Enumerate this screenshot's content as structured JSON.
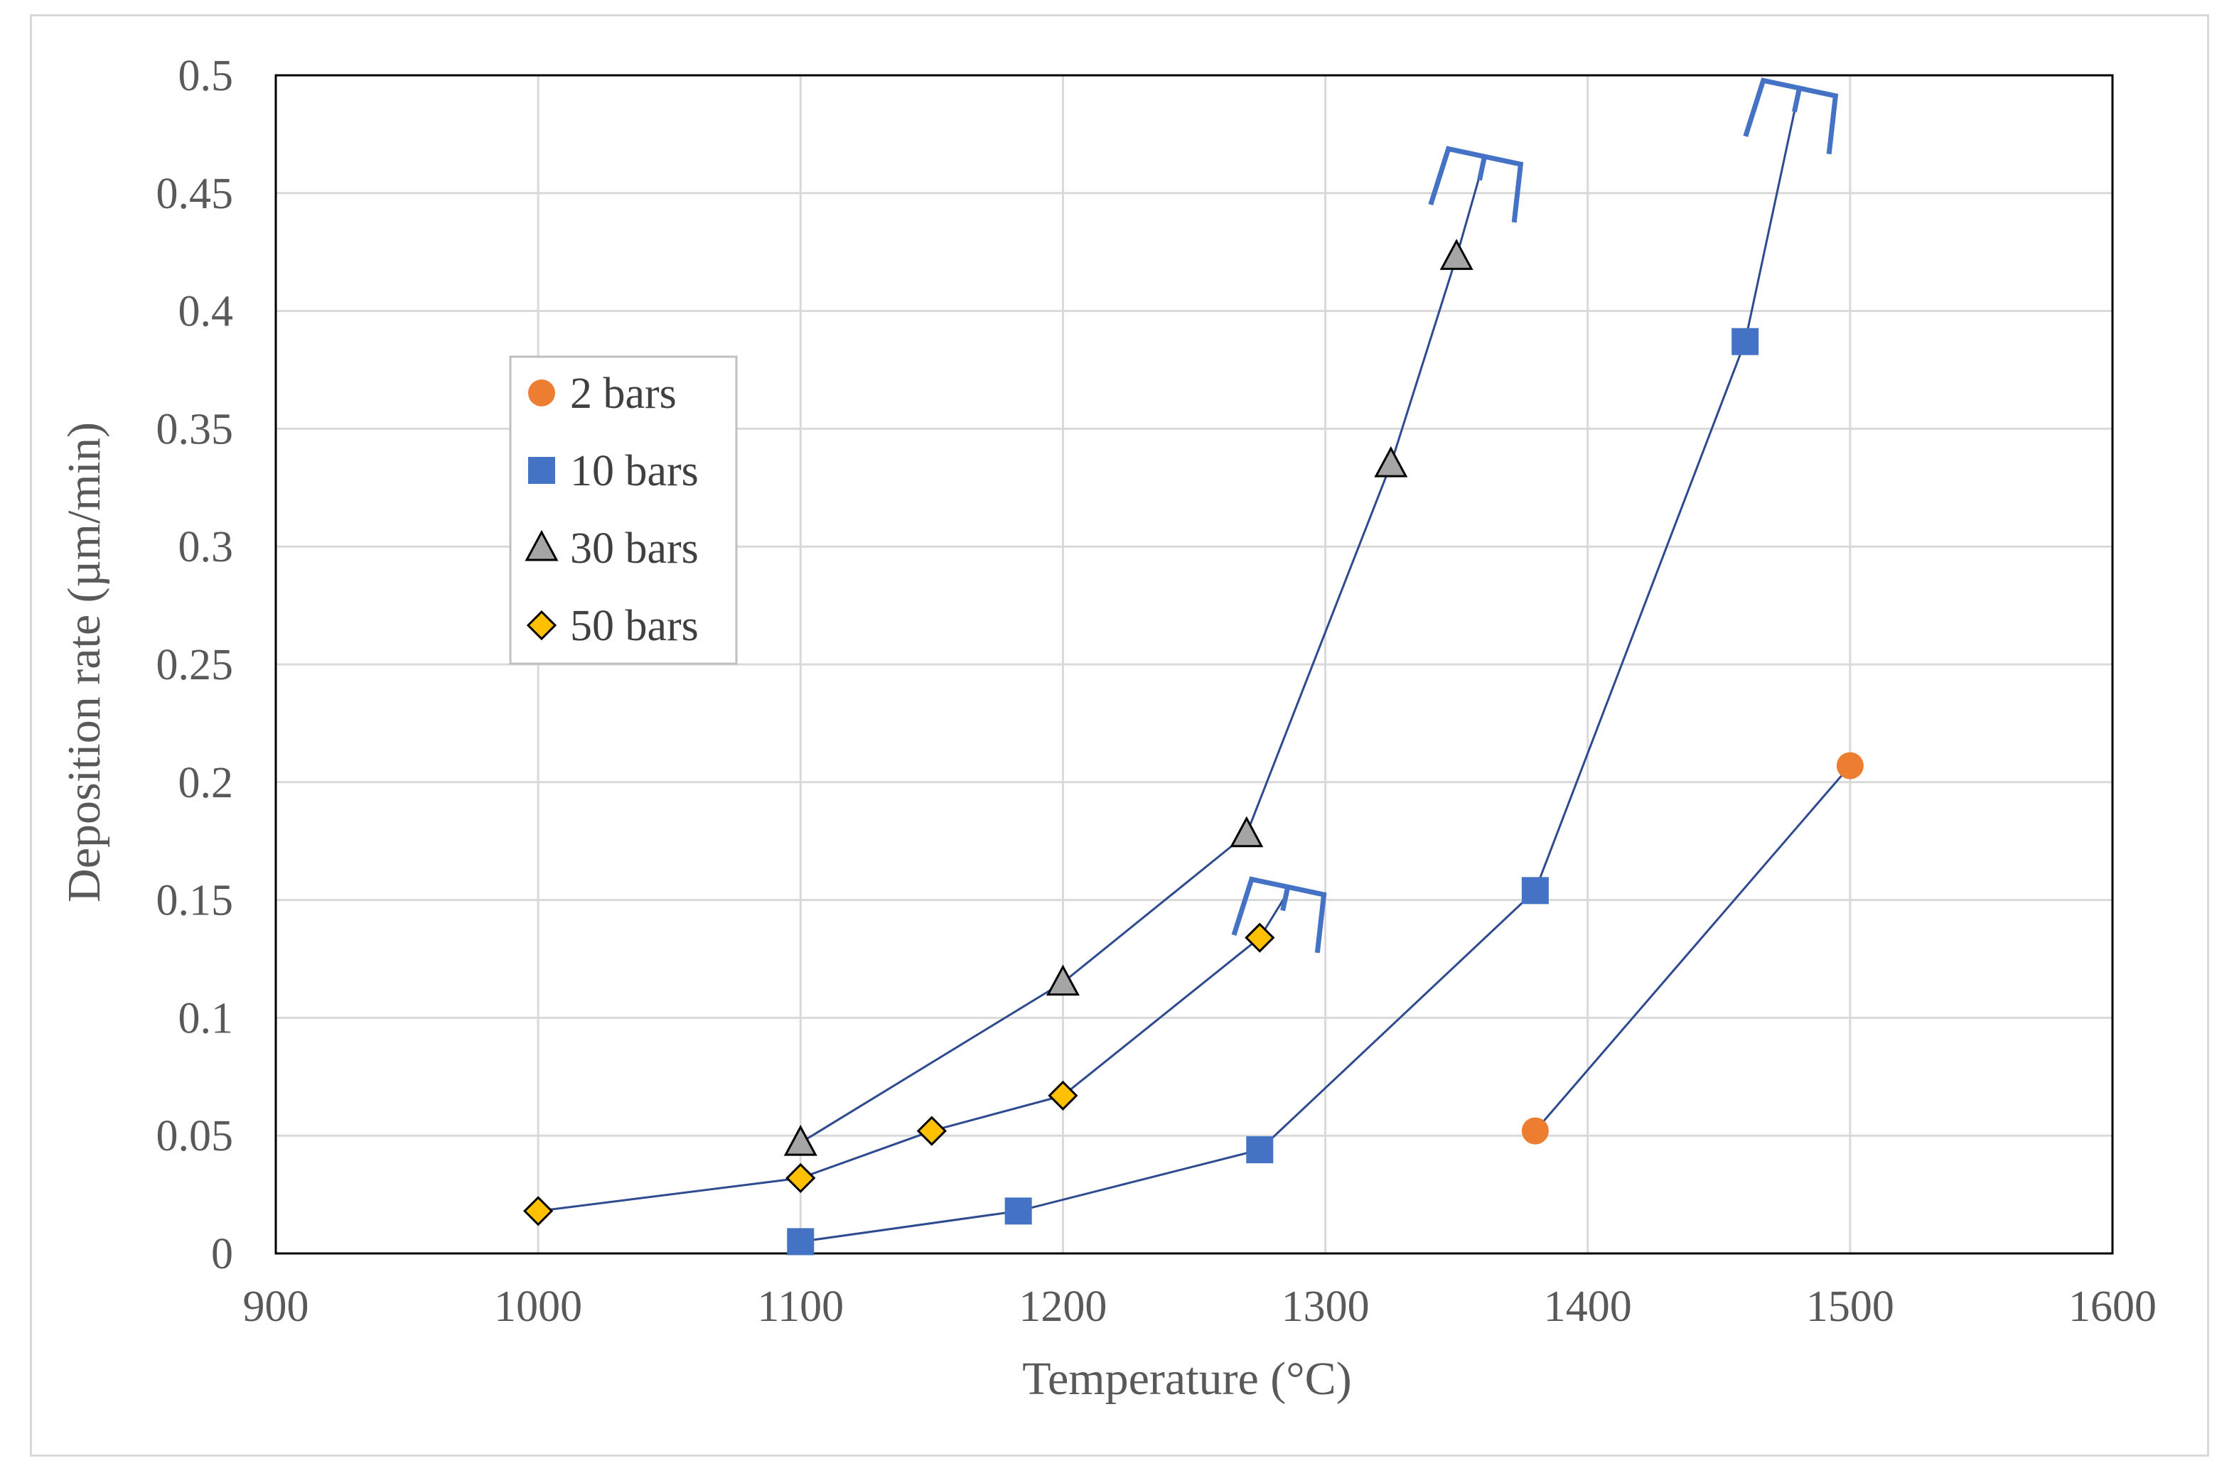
{
  "chart_data": {
    "type": "scatter",
    "title": "",
    "xlabel": "Temperature (°C)",
    "ylabel": "Deposition rate (µm/min)",
    "xlim": [
      900,
      1600
    ],
    "ylim": [
      0,
      0.5
    ],
    "x_ticks": [
      900,
      1000,
      1100,
      1200,
      1300,
      1400,
      1500,
      1600
    ],
    "x_tick_labels": [
      "900",
      "1000",
      "1100",
      "1200",
      "1300",
      "1400",
      "1500",
      "1600"
    ],
    "y_ticks": [
      0,
      0.05,
      0.1,
      0.15,
      0.2,
      0.25,
      0.3,
      0.35,
      0.4,
      0.45,
      0.5
    ],
    "y_tick_labels": [
      "0",
      "0.05",
      "0.1",
      "0.15",
      "0.2",
      "0.25",
      "0.3",
      "0.35",
      "0.4",
      "0.45",
      "0.5"
    ],
    "grid": true,
    "legend_position": "left",
    "line_color": "#2f4b8f",
    "bracket_color": "#4472c4",
    "series": [
      {
        "name": "2 bars",
        "marker": "circle",
        "color": "#ed7d31",
        "x": [
          1380,
          1500
        ],
        "y": [
          0.052,
          0.207
        ]
      },
      {
        "name": "10 bars",
        "marker": "square",
        "color": "#4472c4",
        "x": [
          1100,
          1183,
          1275,
          1380,
          1460
        ],
        "y": [
          0.005,
          0.018,
          0.044,
          0.154,
          0.387
        ]
      },
      {
        "name": "30 bars",
        "marker": "triangle",
        "color": "#a5a5a5",
        "x": [
          1100,
          1200,
          1270,
          1325,
          1350
        ],
        "y": [
          0.047,
          0.115,
          0.178,
          0.335,
          0.423
        ]
      },
      {
        "name": "50 bars",
        "marker": "diamond",
        "color": "#ffc000",
        "x": [
          1000,
          1100,
          1150,
          1200,
          1275
        ],
        "y": [
          0.018,
          0.032,
          0.052,
          0.067,
          0.134
        ]
      }
    ],
    "trend_extensions": [
      {
        "series": "30 bars",
        "from": [
          1350,
          0.423
        ],
        "to": [
          1360,
          0.462
        ]
      },
      {
        "series": "10 bars",
        "from": [
          1460,
          0.387
        ],
        "to": [
          1480,
          0.491
        ]
      },
      {
        "series": "50 bars",
        "from": [
          1275,
          0.134
        ],
        "to": [
          1285,
          0.152
        ]
      }
    ],
    "brackets": [
      {
        "series": "30 bars",
        "at": [
          1360,
          0.462
        ]
      },
      {
        "series": "10 bars",
        "at": [
          1480,
          0.491
        ]
      },
      {
        "series": "50 bars",
        "at": [
          1285,
          0.152
        ]
      }
    ]
  }
}
